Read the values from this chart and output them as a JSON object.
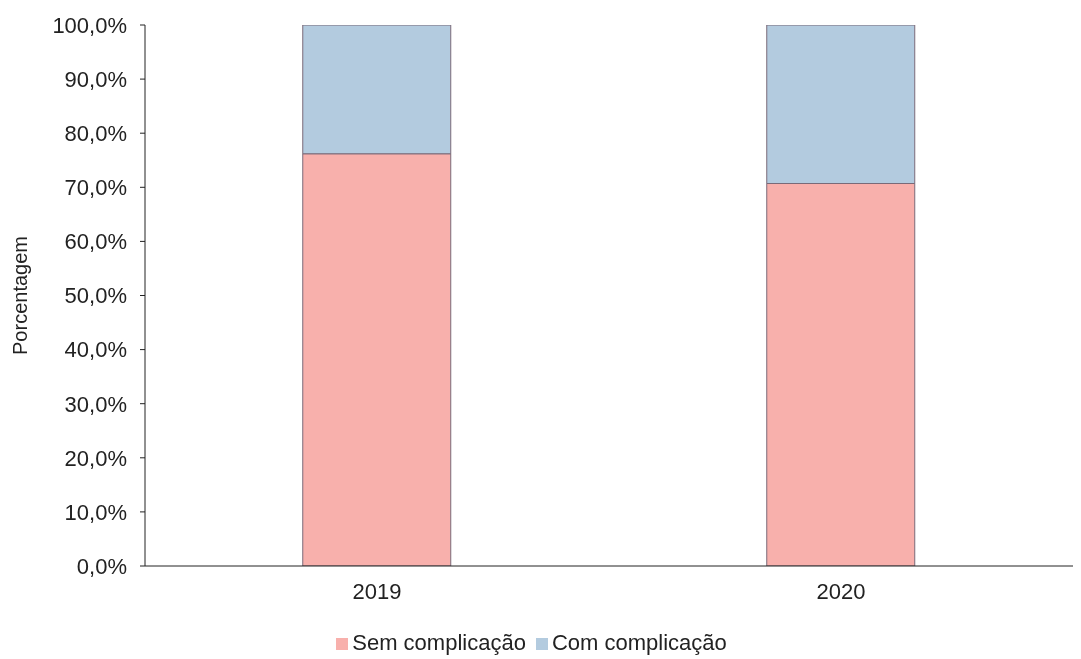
{
  "chart_data": {
    "type": "bar",
    "stacked": true,
    "ylabel": "Porcentagem",
    "categories": [
      "2019",
      "2020"
    ],
    "series": [
      {
        "name": "Sem complicação",
        "color": "#f8b0ac",
        "values": [
          76.2,
          70.7
        ]
      },
      {
        "name": "Com complicação",
        "color": "#b3cbdf",
        "values": [
          23.8,
          29.3
        ]
      }
    ],
    "ylim": [
      0,
      100
    ],
    "yticks": [
      {
        "value": 0,
        "label": "0,0%"
      },
      {
        "value": 10,
        "label": "10,0%"
      },
      {
        "value": 20,
        "label": "20,0%"
      },
      {
        "value": 30,
        "label": "30,0%"
      },
      {
        "value": 40,
        "label": "40,0%"
      },
      {
        "value": 50,
        "label": "50,0%"
      },
      {
        "value": 60,
        "label": "60,0%"
      },
      {
        "value": 70,
        "label": "70,0%"
      },
      {
        "value": 80,
        "label": "80,0%"
      },
      {
        "value": 90,
        "label": "90,0%"
      },
      {
        "value": 100,
        "label": "100,0%"
      }
    ],
    "legend": "bottom"
  }
}
